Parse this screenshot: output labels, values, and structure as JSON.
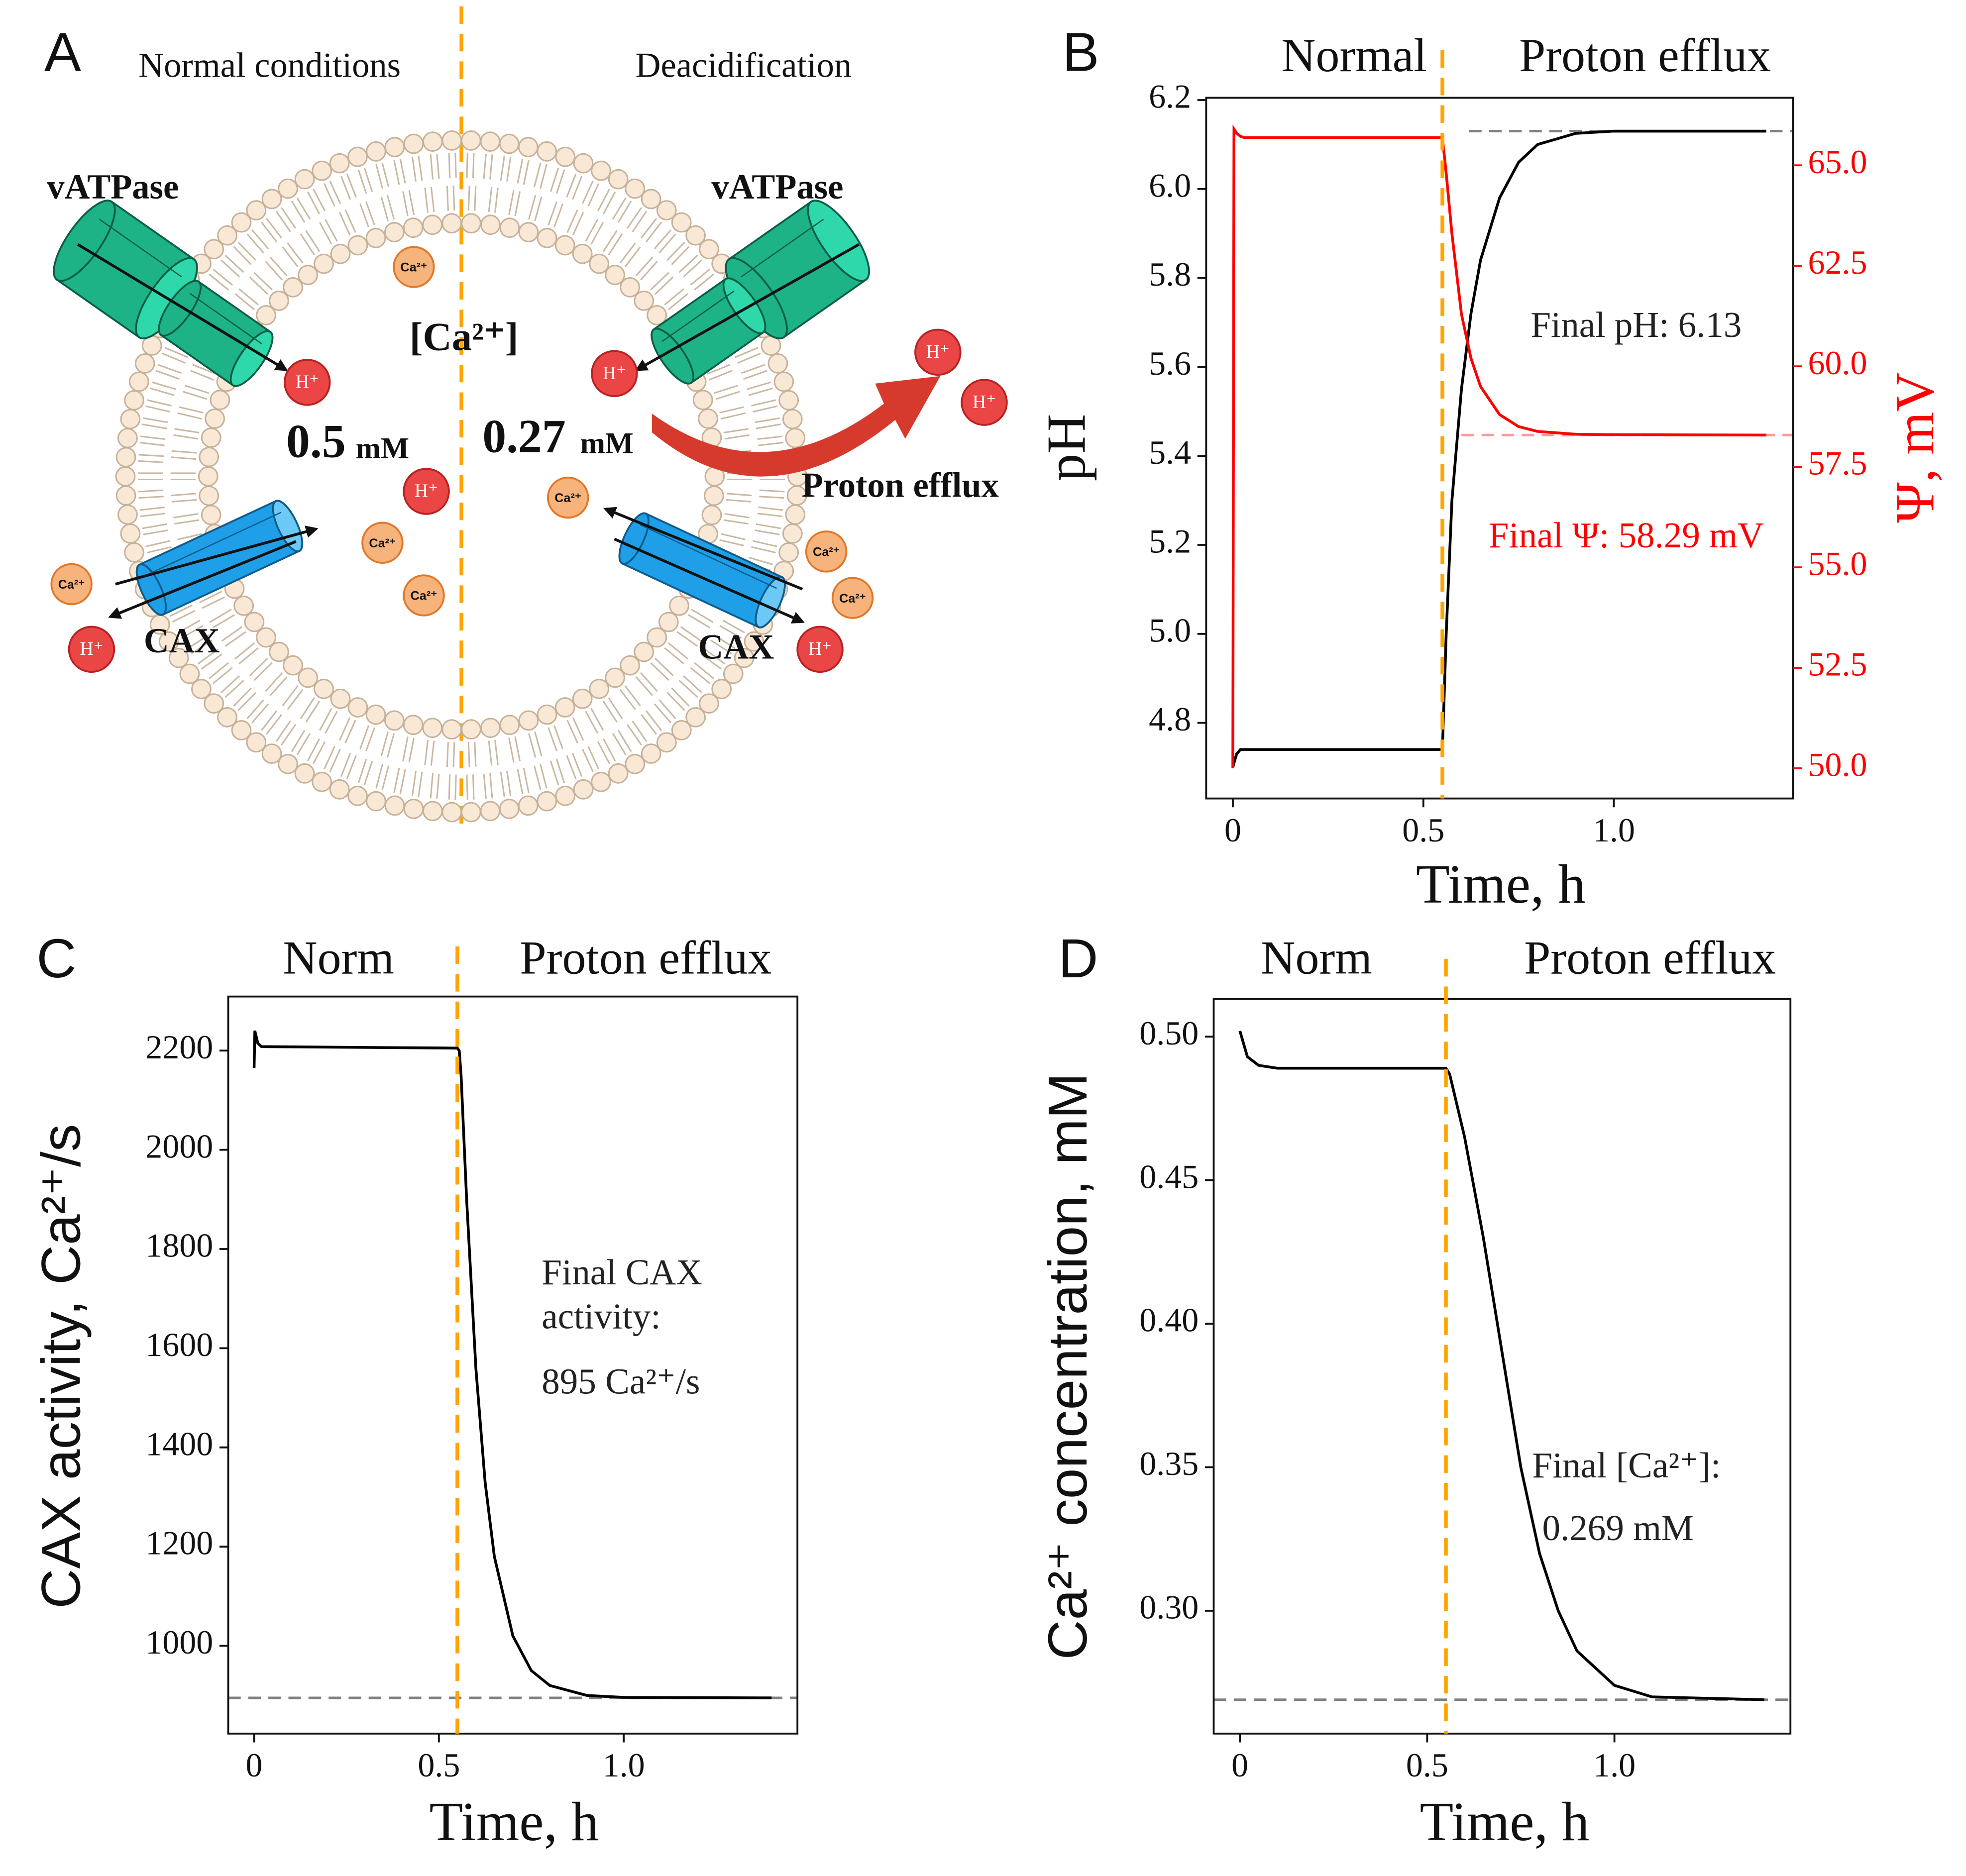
{
  "diagram": {
    "panel": "A",
    "left_title": "Normal conditions",
    "right_title": "Deacidification",
    "pump_label": "vATPase",
    "exchanger_label": "CAX",
    "lumen_label": "[Ca²⁺]",
    "left_concentration": "0.5",
    "right_concentration": "0.27",
    "unit": "mM",
    "efflux_label": "Proton efflux",
    "proton": "H⁺",
    "calcium": "Ca²⁺"
  },
  "chart_data": [
    {
      "type": "line",
      "panel": "B",
      "headers": [
        "Normal",
        "Proton efflux"
      ],
      "xlabel": "Time, h",
      "ylabel": "pH",
      "y2label": "Ψ, mV",
      "y2color": "#ff0000",
      "xlim": [
        -0.07,
        1.47
      ],
      "xticks": [
        0,
        0.5,
        {
          "value": 1,
          "label": "1.0"
        }
      ],
      "ylim": [
        4.63,
        6.205
      ],
      "yticks": [
        4.8,
        {
          "value": 5,
          "label": "5.0"
        },
        5.2,
        5.4,
        5.6,
        5.8,
        {
          "value": 6,
          "label": "6.0"
        },
        6.2
      ],
      "y2lim": [
        49.25,
        66.68
      ],
      "y2ticks": [
        {
          "value": 50,
          "label": "50.0"
        },
        52.5,
        {
          "value": 55,
          "label": "55.0"
        },
        57.5,
        {
          "value": 60,
          "label": "60.0"
        },
        62.5,
        {
          "value": 65,
          "label": "65.0"
        }
      ],
      "x": [
        0,
        0.003,
        0.01,
        0.02,
        0.03,
        0.55,
        0.56,
        0.575,
        0.6,
        0.625,
        0.65,
        0.7,
        0.75,
        0.8,
        0.9,
        1.0,
        1.4
      ],
      "series": [
        {
          "color": "#000000",
          "values": [
            4.7,
            4.71,
            4.73,
            4.74,
            4.74,
            4.74,
            5.0,
            5.3,
            5.55,
            5.72,
            5.84,
            5.98,
            6.06,
            6.1,
            6.125,
            6.13,
            6.13
          ]
        },
        {
          "color": "#ff0000",
          "axis": "y2",
          "values": [
            50.0,
            65.9,
            65.8,
            65.72,
            65.69,
            65.69,
            64.8,
            63.3,
            61.3,
            60.2,
            59.5,
            58.8,
            58.5,
            58.38,
            58.31,
            58.3,
            58.29
          ]
        }
      ],
      "hlines": [
        {
          "value": 6.13,
          "xstart": 0.62,
          "color": "#808080"
        },
        {
          "value": 58.29,
          "axis": "y2",
          "xstart": 0.6,
          "color": "#ff9999"
        }
      ],
      "vline": {
        "value": 0.55,
        "color": "#ffa500"
      },
      "annotations": [
        {
          "text": "Final pH: 6.13",
          "color": "#222222"
        },
        {
          "text": "Final Ψ: 58.29 mV",
          "color": "#ff0000"
        }
      ]
    },
    {
      "type": "line",
      "panel": "C",
      "headers": [
        "Norm",
        "Proton efflux"
      ],
      "xlabel": "Time, h",
      "ylabel": "CAX activity, Ca²⁺/s",
      "xlim": [
        -0.07,
        1.47
      ],
      "xticks": [
        0,
        0.5,
        {
          "value": 1,
          "label": "1.0"
        }
      ],
      "ylim": [
        823,
        2309
      ],
      "yticks": [
        1000,
        1200,
        1400,
        1600,
        1800,
        2000,
        2200
      ],
      "x": [
        0,
        0.002,
        0.01,
        0.02,
        0.55,
        0.555,
        0.56,
        0.575,
        0.6,
        0.625,
        0.65,
        0.7,
        0.75,
        0.8,
        0.9,
        1.0,
        1.4
      ],
      "series": [
        {
          "color": "#000000",
          "values": [
            2165,
            2240,
            2215,
            2208,
            2205,
            2200,
            2150,
            1900,
            1560,
            1330,
            1180,
            1020,
            950,
            920,
            900,
            896,
            895
          ]
        }
      ],
      "hlines": [
        {
          "value": 895,
          "color": "#808080"
        }
      ],
      "vline": {
        "value": 0.55,
        "color": "#ffa500"
      },
      "annotations": [
        {
          "text": "Final CAX",
          "color": "#222222"
        },
        {
          "text": "activity:",
          "color": "#222222"
        },
        {
          "text": "895 Ca²⁺/s",
          "color": "#222222"
        }
      ]
    },
    {
      "type": "line",
      "panel": "D",
      "headers": [
        "Norm",
        "Proton efflux"
      ],
      "xlabel": "Time, h",
      "ylabel": "Ca²⁺ concentration, mM",
      "xlim": [
        -0.07,
        1.47
      ],
      "xticks": [
        0,
        0.5,
        {
          "value": 1,
          "label": "1.0"
        }
      ],
      "ylim": [
        0.2572,
        0.5131
      ],
      "yticks": [
        {
          "value": 0.3,
          "label": "0.30"
        },
        0.35,
        {
          "value": 0.4,
          "label": "0.40"
        },
        0.45,
        {
          "value": 0.5,
          "label": "0.50"
        }
      ],
      "x": [
        0,
        0.02,
        0.05,
        0.1,
        0.55,
        0.56,
        0.6,
        0.65,
        0.7,
        0.75,
        0.8,
        0.85,
        0.9,
        1.0,
        1.1,
        1.4
      ],
      "series": [
        {
          "color": "#000000",
          "values": [
            0.502,
            0.493,
            0.49,
            0.489,
            0.489,
            0.487,
            0.465,
            0.43,
            0.39,
            0.35,
            0.32,
            0.3,
            0.286,
            0.274,
            0.27,
            0.269
          ]
        }
      ],
      "hlines": [
        {
          "value": 0.269,
          "color": "#808080"
        }
      ],
      "vline": {
        "value": 0.55,
        "color": "#ffa500"
      },
      "annotations": [
        {
          "text": "Final [Ca²⁺]:",
          "color": "#222222"
        },
        {
          "text": "0.269 mM",
          "color": "#222222"
        }
      ]
    }
  ]
}
